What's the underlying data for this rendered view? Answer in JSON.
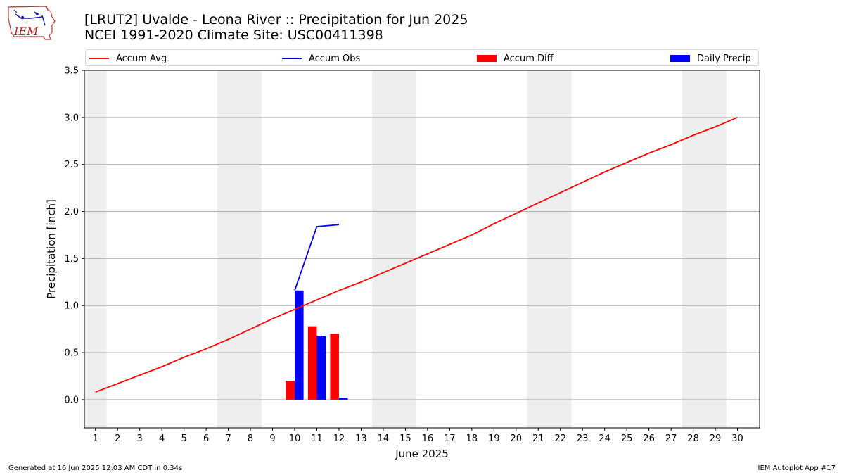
{
  "header": {
    "title_line1": "[LRUT2] Uvalde - Leona River :: Precipitation for Jun 2025",
    "title_line2": "NCEI 1991-2020 Climate Site: USC00411398",
    "logo_text": "IEM"
  },
  "footer": {
    "left": "Generated at 16 Jun 2025 12:03 AM CDT in 0.34s",
    "right": "IEM Autoplot App #17"
  },
  "chart_data": {
    "type": "bar",
    "xlabel": "June 2025",
    "ylabel": "Precipitation [inch]",
    "xlim": [
      0.5,
      31
    ],
    "ylim": [
      -0.3,
      3.5
    ],
    "yticks": [
      0.0,
      0.5,
      1.0,
      1.5,
      2.0,
      2.5,
      3.0,
      3.5
    ],
    "ytick_labels": [
      "0.0",
      "0.5",
      "1.0",
      "1.5",
      "2.0",
      "2.5",
      "3.0",
      "3.5"
    ],
    "x": [
      1,
      2,
      3,
      4,
      5,
      6,
      7,
      8,
      9,
      10,
      11,
      12,
      13,
      14,
      15,
      16,
      17,
      18,
      19,
      20,
      21,
      22,
      23,
      24,
      25,
      26,
      27,
      28,
      29,
      30
    ],
    "grid": "y",
    "weekend_shading": [
      [
        0.5,
        1.5
      ],
      [
        6.5,
        8.5
      ],
      [
        13.5,
        15.5
      ],
      [
        20.5,
        22.5
      ],
      [
        27.5,
        29.5
      ]
    ],
    "colors": {
      "avg": "#ff0000",
      "obs": "#0000ff",
      "diff": "#ff0000",
      "daily": "#0000ff",
      "weekend": "#eeeeee"
    },
    "legend_position": "top",
    "series": [
      {
        "name": "Accum Avg",
        "kind": "line",
        "values": [
          0.08,
          0.17,
          0.26,
          0.35,
          0.45,
          0.54,
          0.64,
          0.75,
          0.86,
          0.96,
          1.06,
          1.16,
          1.25,
          1.35,
          1.45,
          1.55,
          1.65,
          1.75,
          1.87,
          1.98,
          2.09,
          2.2,
          2.31,
          2.42,
          2.52,
          2.62,
          2.71,
          2.81,
          2.9,
          3.0
        ]
      },
      {
        "name": "Accum Obs",
        "kind": "line",
        "x": [
          10,
          11,
          12
        ],
        "values": [
          1.16,
          1.84,
          1.86
        ]
      },
      {
        "name": "Accum Diff",
        "kind": "bar",
        "x": [
          10,
          11,
          12
        ],
        "values": [
          0.2,
          0.78,
          0.7
        ]
      },
      {
        "name": "Daily Precip",
        "kind": "bar",
        "x": [
          10,
          11,
          12
        ],
        "values": [
          1.16,
          0.68,
          0.02
        ]
      }
    ]
  }
}
